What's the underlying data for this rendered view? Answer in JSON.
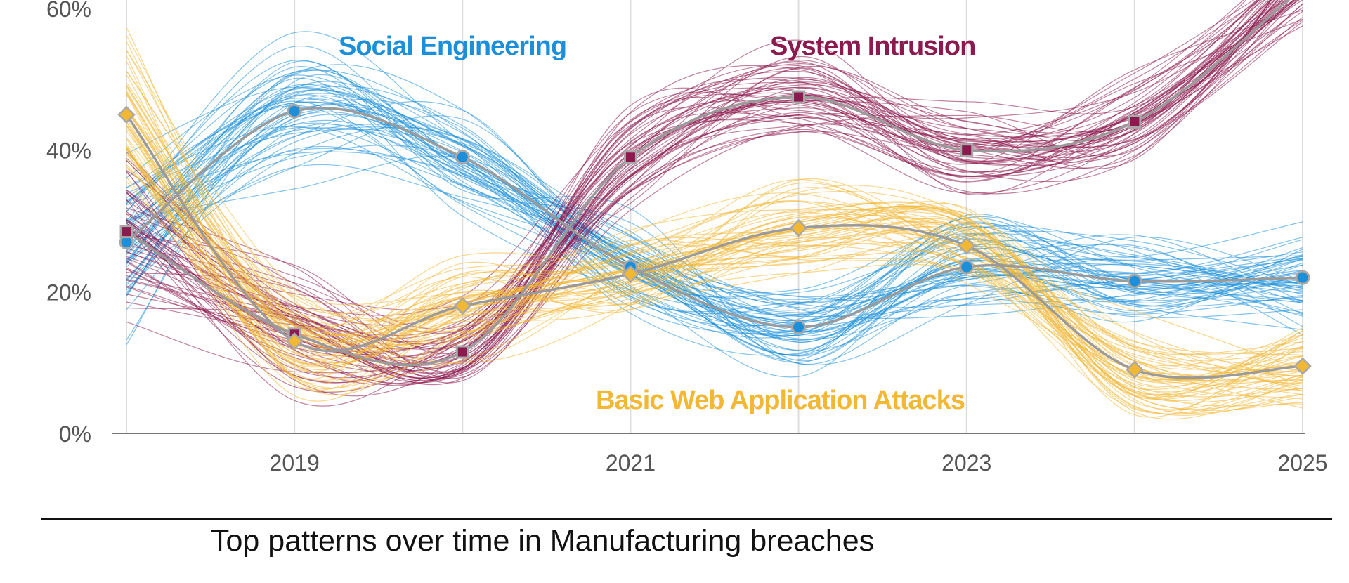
{
  "chart_data": {
    "type": "line",
    "x": [
      2018,
      2019,
      2020,
      2021,
      2022,
      2023,
      2024,
      2025
    ],
    "xticks": [
      "2019",
      "2021",
      "2023",
      "2025"
    ],
    "yticks": [
      "0%",
      "20%",
      "40%",
      "60%"
    ],
    "ylim": [
      0,
      60
    ],
    "xlim": [
      2018,
      2025
    ],
    "grid": "vertical",
    "caption": "Top patterns over time in Manufacturing breaches",
    "series": [
      {
        "name": "Social Engineering",
        "values": [
          27,
          45.5,
          39,
          23.5,
          15,
          23.5,
          21.5,
          22
        ],
        "color": "#1b8fd9",
        "marker": "circle"
      },
      {
        "name": "System Intrusion",
        "values": [
          28.5,
          14,
          11.5,
          39,
          47.5,
          40,
          44,
          63
        ],
        "color": "#8c1a4f",
        "marker": "square"
      },
      {
        "name": "Basic Web Application Attacks",
        "values": [
          45,
          13,
          18,
          22.5,
          29,
          26.5,
          9,
          9.5
        ],
        "color": "#f2b733",
        "marker": "diamond"
      }
    ]
  }
}
